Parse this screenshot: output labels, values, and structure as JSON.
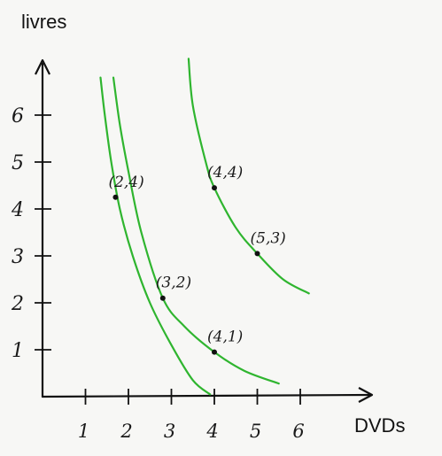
{
  "chart_data": {
    "type": "line",
    "title": "",
    "xlabel": "DVDs",
    "ylabel": "livres",
    "xlim": [
      0,
      6.5
    ],
    "ylim": [
      0,
      6.7
    ],
    "x_ticks": [
      {
        "value": 1,
        "label": "1"
      },
      {
        "value": 2,
        "label": "2"
      },
      {
        "value": 3,
        "label": "3"
      },
      {
        "value": 4,
        "label": "4"
      },
      {
        "value": 5,
        "label": "5"
      },
      {
        "value": 6,
        "label": "6"
      }
    ],
    "y_ticks": [
      {
        "value": 1,
        "label": "1"
      },
      {
        "value": 2,
        "label": "2"
      },
      {
        "value": 3,
        "label": "3"
      },
      {
        "value": 4,
        "label": "4"
      },
      {
        "value": 5,
        "label": "5"
      },
      {
        "value": 6,
        "label": "6"
      }
    ],
    "grid": false,
    "line_color": "#2fb52f",
    "series": [
      {
        "x": [
          1.35,
          1.45,
          1.6,
          1.8,
          2.1,
          2.5,
          3.0,
          3.5,
          3.9
        ],
        "y": [
          6.8,
          6.0,
          5.0,
          4.0,
          3.0,
          2.0,
          1.1,
          0.35,
          0.05
        ]
      },
      {
        "x": [
          1.65,
          1.8,
          2.0,
          2.3,
          2.8,
          3.3,
          4.0,
          4.7,
          5.5
        ],
        "y": [
          6.8,
          5.8,
          4.8,
          3.5,
          2.1,
          1.5,
          0.95,
          0.55,
          0.28
        ]
      },
      {
        "x": [
          3.4,
          3.5,
          3.8,
          4.0,
          4.5,
          5.0,
          5.6,
          6.2
        ],
        "y": [
          7.2,
          6.2,
          5.0,
          4.45,
          3.6,
          3.05,
          2.5,
          2.2
        ]
      }
    ],
    "points": [
      {
        "x": 1.7,
        "y": 4.25,
        "label": "(2,4)"
      },
      {
        "x": 2.8,
        "y": 2.1,
        "label": "(3,2)"
      },
      {
        "x": 4.0,
        "y": 0.95,
        "label": "(4,1)"
      },
      {
        "x": 4.0,
        "y": 4.45,
        "label": "(4,4)"
      },
      {
        "x": 5.0,
        "y": 3.05,
        "label": "(5,3)"
      }
    ]
  }
}
